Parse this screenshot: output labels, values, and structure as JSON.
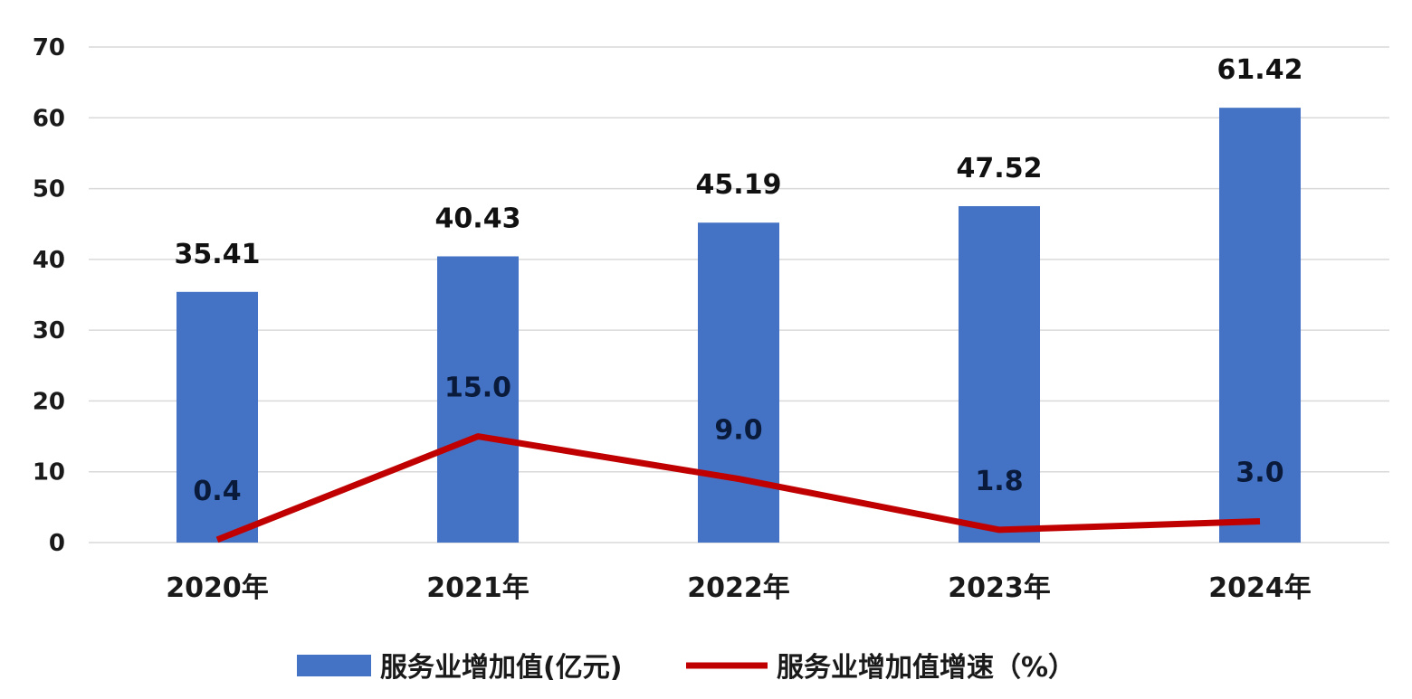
{
  "chart_data": {
    "type": "bar",
    "categories": [
      "2020年",
      "2021年",
      "2022年",
      "2023年",
      "2024年"
    ],
    "series": [
      {
        "name": "服务业增加值(亿元)",
        "kind": "bar",
        "values": [
          35.41,
          40.43,
          45.19,
          47.52,
          61.42
        ],
        "labels": [
          "35.41",
          "40.43",
          "45.19",
          "47.52",
          "61.42"
        ],
        "color": "#4472C4"
      },
      {
        "name": "服务业增加值增速（%）",
        "kind": "line",
        "values": [
          0.4,
          15.0,
          9.0,
          1.8,
          3.0
        ],
        "labels": [
          "0.4",
          "15.0",
          "9.0",
          "1.8",
          "3.0"
        ],
        "color": "#C00000"
      }
    ],
    "ylim": [
      0,
      70
    ],
    "yticks": [
      "0",
      "10",
      "20",
      "30",
      "40",
      "50",
      "60",
      "70"
    ],
    "grid": true,
    "legend": "bottom"
  }
}
